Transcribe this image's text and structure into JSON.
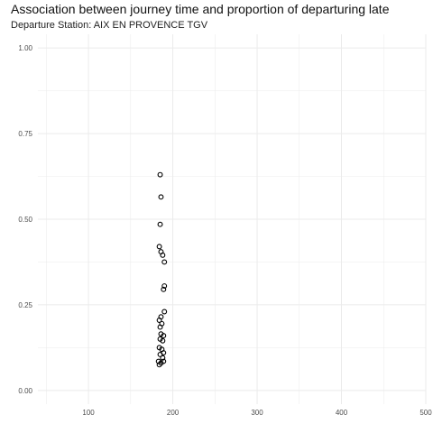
{
  "chart_data": {
    "type": "scatter",
    "title": "Association between journey time and proportion of departuring late",
    "subtitle": "Departure Station: AIX EN PROVENCE TGV",
    "xlabel": "",
    "ylabel": "",
    "xlim": [
      40,
      500
    ],
    "ylim": [
      -0.04,
      1.04
    ],
    "x_ticks": [
      100,
      200,
      300,
      400,
      500
    ],
    "y_ticks": [
      0.0,
      0.25,
      0.5,
      0.75,
      1.0
    ],
    "x_tick_labels": [
      "100",
      "200",
      "300",
      "400",
      "500"
    ],
    "y_tick_labels": [
      "0.00",
      "0.25",
      "0.50",
      "0.75",
      "1.00"
    ],
    "grid": true,
    "marker_color": "#000000",
    "grid_color": "#ebebeb",
    "points": [
      {
        "x": 185,
        "y": 0.63
      },
      {
        "x": 186,
        "y": 0.565
      },
      {
        "x": 185,
        "y": 0.485
      },
      {
        "x": 184,
        "y": 0.42
      },
      {
        "x": 186,
        "y": 0.405
      },
      {
        "x": 188,
        "y": 0.395
      },
      {
        "x": 190,
        "y": 0.375
      },
      {
        "x": 190,
        "y": 0.305
      },
      {
        "x": 189,
        "y": 0.295
      },
      {
        "x": 190,
        "y": 0.23
      },
      {
        "x": 186,
        "y": 0.215
      },
      {
        "x": 184,
        "y": 0.205
      },
      {
        "x": 187,
        "y": 0.195
      },
      {
        "x": 185,
        "y": 0.185
      },
      {
        "x": 186,
        "y": 0.165
      },
      {
        "x": 189,
        "y": 0.16
      },
      {
        "x": 185,
        "y": 0.15
      },
      {
        "x": 188,
        "y": 0.145
      },
      {
        "x": 184,
        "y": 0.125
      },
      {
        "x": 187,
        "y": 0.12
      },
      {
        "x": 189,
        "y": 0.11
      },
      {
        "x": 185,
        "y": 0.105
      },
      {
        "x": 188,
        "y": 0.095
      },
      {
        "x": 183,
        "y": 0.085
      },
      {
        "x": 186,
        "y": 0.08
      },
      {
        "x": 184,
        "y": 0.075
      },
      {
        "x": 189,
        "y": 0.085
      }
    ]
  }
}
